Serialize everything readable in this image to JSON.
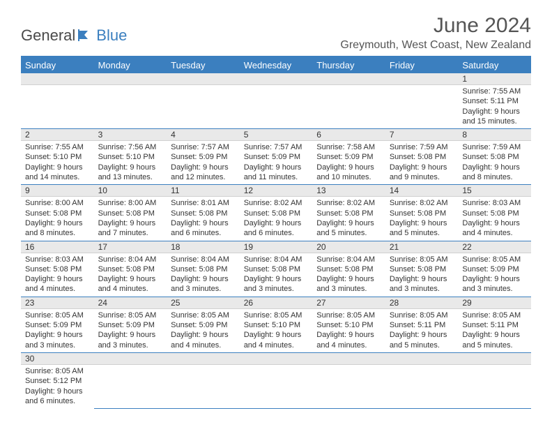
{
  "logo": {
    "text1": "General",
    "text2": "Blue"
  },
  "title": "June 2024",
  "location": "Greymouth, West Coast, New Zealand",
  "colors": {
    "accent": "#3b7fbf",
    "header_text": "#ffffff",
    "day_strip_bg": "#e9e9e9",
    "body_text": "#333333",
    "title_text": "#555555"
  },
  "weekdays": [
    "Sunday",
    "Monday",
    "Tuesday",
    "Wednesday",
    "Thursday",
    "Friday",
    "Saturday"
  ],
  "weeks": [
    [
      null,
      null,
      null,
      null,
      null,
      null,
      {
        "n": "1",
        "sr": "7:55 AM",
        "ss": "5:11 PM",
        "dl": "9 hours and 15 minutes."
      }
    ],
    [
      {
        "n": "2",
        "sr": "7:55 AM",
        "ss": "5:10 PM",
        "dl": "9 hours and 14 minutes."
      },
      {
        "n": "3",
        "sr": "7:56 AM",
        "ss": "5:10 PM",
        "dl": "9 hours and 13 minutes."
      },
      {
        "n": "4",
        "sr": "7:57 AM",
        "ss": "5:09 PM",
        "dl": "9 hours and 12 minutes."
      },
      {
        "n": "5",
        "sr": "7:57 AM",
        "ss": "5:09 PM",
        "dl": "9 hours and 11 minutes."
      },
      {
        "n": "6",
        "sr": "7:58 AM",
        "ss": "5:09 PM",
        "dl": "9 hours and 10 minutes."
      },
      {
        "n": "7",
        "sr": "7:59 AM",
        "ss": "5:08 PM",
        "dl": "9 hours and 9 minutes."
      },
      {
        "n": "8",
        "sr": "7:59 AM",
        "ss": "5:08 PM",
        "dl": "9 hours and 8 minutes."
      }
    ],
    [
      {
        "n": "9",
        "sr": "8:00 AM",
        "ss": "5:08 PM",
        "dl": "9 hours and 8 minutes."
      },
      {
        "n": "10",
        "sr": "8:00 AM",
        "ss": "5:08 PM",
        "dl": "9 hours and 7 minutes."
      },
      {
        "n": "11",
        "sr": "8:01 AM",
        "ss": "5:08 PM",
        "dl": "9 hours and 6 minutes."
      },
      {
        "n": "12",
        "sr": "8:02 AM",
        "ss": "5:08 PM",
        "dl": "9 hours and 6 minutes."
      },
      {
        "n": "13",
        "sr": "8:02 AM",
        "ss": "5:08 PM",
        "dl": "9 hours and 5 minutes."
      },
      {
        "n": "14",
        "sr": "8:02 AM",
        "ss": "5:08 PM",
        "dl": "9 hours and 5 minutes."
      },
      {
        "n": "15",
        "sr": "8:03 AM",
        "ss": "5:08 PM",
        "dl": "9 hours and 4 minutes."
      }
    ],
    [
      {
        "n": "16",
        "sr": "8:03 AM",
        "ss": "5:08 PM",
        "dl": "9 hours and 4 minutes."
      },
      {
        "n": "17",
        "sr": "8:04 AM",
        "ss": "5:08 PM",
        "dl": "9 hours and 4 minutes."
      },
      {
        "n": "18",
        "sr": "8:04 AM",
        "ss": "5:08 PM",
        "dl": "9 hours and 3 minutes."
      },
      {
        "n": "19",
        "sr": "8:04 AM",
        "ss": "5:08 PM",
        "dl": "9 hours and 3 minutes."
      },
      {
        "n": "20",
        "sr": "8:04 AM",
        "ss": "5:08 PM",
        "dl": "9 hours and 3 minutes."
      },
      {
        "n": "21",
        "sr": "8:05 AM",
        "ss": "5:08 PM",
        "dl": "9 hours and 3 minutes."
      },
      {
        "n": "22",
        "sr": "8:05 AM",
        "ss": "5:09 PM",
        "dl": "9 hours and 3 minutes."
      }
    ],
    [
      {
        "n": "23",
        "sr": "8:05 AM",
        "ss": "5:09 PM",
        "dl": "9 hours and 3 minutes."
      },
      {
        "n": "24",
        "sr": "8:05 AM",
        "ss": "5:09 PM",
        "dl": "9 hours and 3 minutes."
      },
      {
        "n": "25",
        "sr": "8:05 AM",
        "ss": "5:09 PM",
        "dl": "9 hours and 4 minutes."
      },
      {
        "n": "26",
        "sr": "8:05 AM",
        "ss": "5:10 PM",
        "dl": "9 hours and 4 minutes."
      },
      {
        "n": "27",
        "sr": "8:05 AM",
        "ss": "5:10 PM",
        "dl": "9 hours and 4 minutes."
      },
      {
        "n": "28",
        "sr": "8:05 AM",
        "ss": "5:11 PM",
        "dl": "9 hours and 5 minutes."
      },
      {
        "n": "29",
        "sr": "8:05 AM",
        "ss": "5:11 PM",
        "dl": "9 hours and 5 minutes."
      }
    ],
    [
      {
        "n": "30",
        "sr": "8:05 AM",
        "ss": "5:12 PM",
        "dl": "9 hours and 6 minutes."
      },
      null,
      null,
      null,
      null,
      null,
      null
    ]
  ],
  "labels": {
    "sunrise": "Sunrise:",
    "sunset": "Sunset:",
    "daylight": "Daylight:"
  }
}
